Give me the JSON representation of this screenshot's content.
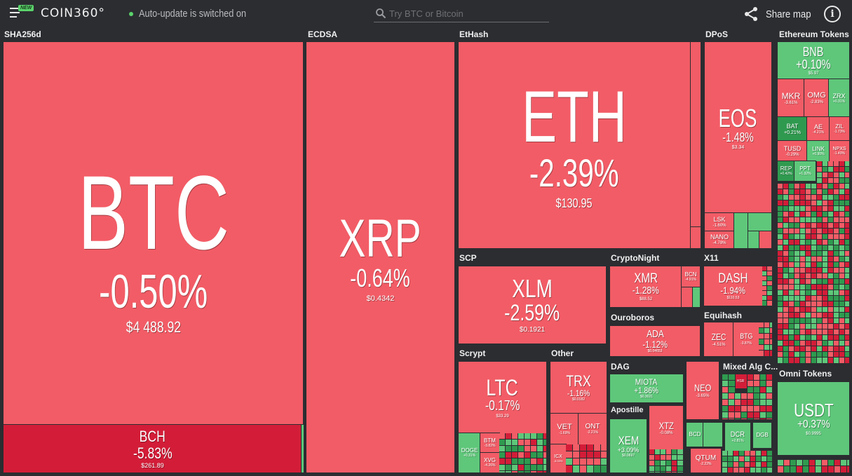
{
  "header": {
    "brand": "COIN360°",
    "new_badge": "NEW",
    "status_text": "Auto-update is switched on",
    "search_placeholder": "Try BTC or Bitcoin",
    "share_label": "Share map",
    "info_label": "i"
  },
  "groups": {
    "sha256d": "SHA256d",
    "ecdsa": "ECDSA",
    "ethash": "EtHash",
    "dpos": "DPoS",
    "eth_tokens": "Ethereum Tokens",
    "scp": "SCP",
    "cryptonight": "CryptoNight",
    "x11": "X11",
    "ouroboros": "Ouroboros",
    "equihash": "Equihash",
    "scrypt": "Scrypt",
    "other": "Other",
    "dag": "DAG",
    "mixed": "Mixed Alg C...",
    "apostille": "Apostille",
    "omni": "Omni Tokens"
  },
  "coins": {
    "btc": {
      "sym": "BTC",
      "chg": "-0.50%",
      "price": "$4 488.92"
    },
    "bch": {
      "sym": "BCH",
      "chg": "-5.83%",
      "price": "$261.89"
    },
    "xrp": {
      "sym": "XRP",
      "chg": "-0.64%",
      "price": "$0.4342"
    },
    "eth": {
      "sym": "ETH",
      "chg": "-2.39%",
      "price": "$130.95"
    },
    "eos": {
      "sym": "EOS",
      "chg": "-1.48%",
      "price": "$3.34"
    },
    "lsk": {
      "sym": "LSK",
      "chg": "-1.60%"
    },
    "nano": {
      "sym": "NANO",
      "chg": "-4.78%"
    },
    "bnb": {
      "sym": "BNB",
      "chg": "+0.10%",
      "price": "$5.97"
    },
    "mkr": {
      "sym": "MKR",
      "chg": "-3.61%"
    },
    "omg": {
      "sym": "OMG",
      "chg": "-2.83%"
    },
    "zrx": {
      "sym": "ZRX",
      "chg": "+0.31%"
    },
    "bat": {
      "sym": "BAT",
      "chg": "+0.21%"
    },
    "ae": {
      "sym": "AE",
      "chg": "-4.21%"
    },
    "zil": {
      "sym": "ZIL",
      "chg": "-1.73%"
    },
    "tusd": {
      "sym": "TUSD",
      "chg": "-0.29%"
    },
    "link": {
      "sym": "LINK",
      "chg": "+0.90%"
    },
    "npxs": {
      "sym": "NPXS",
      "chg": "-1.40%"
    },
    "rep": {
      "sym": "REP",
      "chg": "+0.42%"
    },
    "ppt": {
      "sym": "PPT",
      "chg": "+1.32%"
    },
    "xlm": {
      "sym": "XLM",
      "chg": "-2.59%",
      "price": "$0.1921"
    },
    "xmr": {
      "sym": "XMR",
      "chg": "-1.28%",
      "price": "$88.52"
    },
    "bcn": {
      "sym": "BCN",
      "chg": "-4.91%"
    },
    "dash": {
      "sym": "DASH",
      "chg": "-1.94%",
      "price": "$110.53"
    },
    "ada": {
      "sym": "ADA",
      "chg": "-1.12%",
      "price": "$0.04653"
    },
    "zec": {
      "sym": "ZEC",
      "chg": "-4.51%"
    },
    "btg": {
      "sym": "BTG",
      "chg": "-3.87%"
    },
    "ltc": {
      "sym": "LTC",
      "chg": "-0.17%",
      "price": "$33.29"
    },
    "doge": {
      "sym": "DOGE",
      "chg": "+0.31%"
    },
    "btm": {
      "sym": "BTM",
      "chg": "-3.82%"
    },
    "xvg": {
      "sym": "XVG",
      "chg": "-4.26%"
    },
    "trx": {
      "sym": "TRX",
      "chg": "-1.16%",
      "price": "$0.0182"
    },
    "vet": {
      "sym": "VET",
      "chg": "-1.69%"
    },
    "ont": {
      "sym": "ONT",
      "chg": "-2.21%"
    },
    "icx": {
      "sym": "ICX",
      "chg": "-5.03%"
    },
    "miota": {
      "sym": "MIOTA",
      "chg": "+1.86%",
      "price": "$0.3021"
    },
    "neo": {
      "sym": "NEO",
      "chg": "-3.65%"
    },
    "hsr": {
      "sym": "HSR"
    },
    "xem": {
      "sym": "XEM",
      "chg": "+3.09%",
      "price": "$0.0697"
    },
    "xtz": {
      "sym": "XTZ",
      "chg": "-0.08%"
    },
    "bcd": {
      "sym": "BCD"
    },
    "dcr": {
      "sym": "DCR",
      "chg": "+2.81%"
    },
    "dgb": {
      "sym": "DGB"
    },
    "qtum": {
      "sym": "QTUM",
      "chg": "-2.22%"
    },
    "usdt": {
      "sym": "USDT",
      "chg": "+0.37%",
      "price": "$0.9995"
    }
  },
  "colors": {
    "background": "#2b2d31",
    "loss": "#f25c66",
    "heavy_loss": "#d31d38",
    "gain": "#5ec77a",
    "strong_gain": "#2f9a4f"
  }
}
